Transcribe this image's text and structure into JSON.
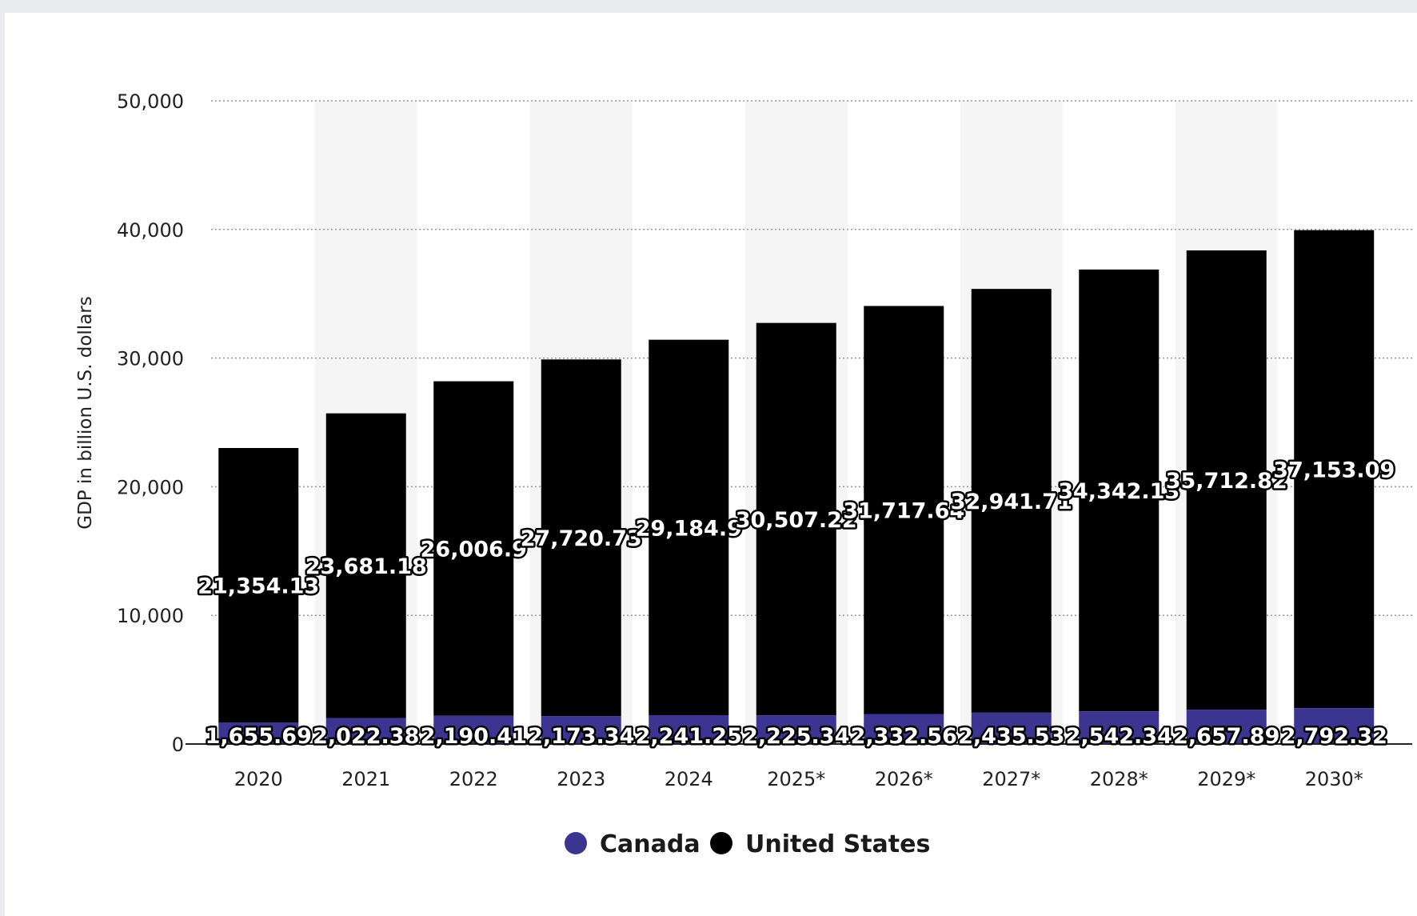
{
  "chart_data": {
    "type": "bar",
    "stacked": true,
    "categories": [
      "2020",
      "2021",
      "2022",
      "2023",
      "2024",
      "2025*",
      "2026*",
      "2027*",
      "2028*",
      "2029*",
      "2030*"
    ],
    "series": [
      {
        "name": "Canada",
        "color": "#3b3591",
        "values": [
          1655.69,
          2022.38,
          2190.41,
          2173.34,
          2241.25,
          2225.34,
          2332.56,
          2435.53,
          2542.34,
          2657.89,
          2792.32
        ],
        "labels": [
          "1,655.69",
          "2,022.38",
          "2,190.41",
          "2,173.34",
          "2,241.25",
          "2,225.34",
          "2,332.56",
          "2,435.53",
          "2,542.34",
          "2,657.89",
          "2,792.32"
        ]
      },
      {
        "name": "United States",
        "color": "#000000",
        "values": [
          21354.13,
          23681.18,
          26006.9,
          27720.73,
          29184.9,
          30507.22,
          31717.64,
          32941.71,
          34342.13,
          35712.82,
          37153.09
        ],
        "labels": [
          "21,354.13",
          "23,681.18",
          "26,006.9",
          "27,720.73",
          "29,184.9",
          "30,507.22",
          "31,717.64",
          "32,941.71",
          "34,342.13",
          "35,712.82",
          "37,153.09"
        ]
      }
    ],
    "xlabel": "",
    "ylabel": "GDP in billion U.S. dollars",
    "ylim": [
      0,
      50000
    ],
    "yticks": [
      0,
      10000,
      20000,
      30000,
      40000,
      50000
    ],
    "ytick_labels": [
      "0",
      "10,000",
      "20,000",
      "30,000",
      "40,000",
      "50,000"
    ],
    "grid": true,
    "legend": "bottom"
  }
}
